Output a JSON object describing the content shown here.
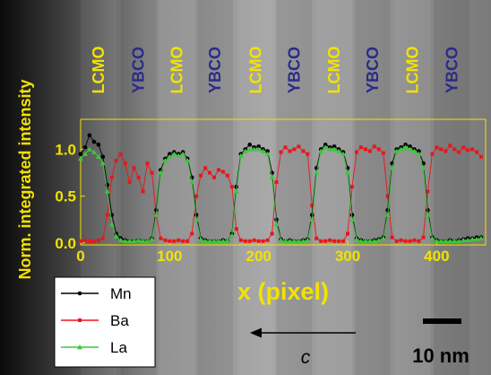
{
  "chart_data": {
    "type": "scatter",
    "xlabel": "x (pixel)",
    "ylabel": "Norm. integrated intensity",
    "xlim": [
      0,
      455
    ],
    "ylim": [
      -0.02,
      1.32
    ],
    "xticks": [
      0,
      100,
      200,
      300,
      400
    ],
    "xtick_labels": [
      "0",
      "100",
      "200",
      "300",
      "400"
    ],
    "yticks": [
      0.0,
      0.5,
      1.0
    ],
    "ytick_labels": [
      "0.0",
      "0.5",
      "1.0"
    ],
    "grid": false,
    "legend_position": "bottom-left",
    "colors": {
      "axis": "#f2e200",
      "lcmo": "#f2e200",
      "ybco": "#2a2a8c",
      "Mn": "#000000",
      "Ba": "#e8161b",
      "La": "#3cc83c"
    },
    "layers": [
      {
        "label": "LCMO",
        "kind": "lcmo",
        "x_center": 20
      },
      {
        "label": "YBCO",
        "kind": "ybco",
        "x_center": 65
      },
      {
        "label": "LCMO",
        "kind": "lcmo",
        "x_center": 108
      },
      {
        "label": "YBCO",
        "kind": "ybco",
        "x_center": 151
      },
      {
        "label": "LCMO",
        "kind": "lcmo",
        "x_center": 197
      },
      {
        "label": "YBCO",
        "kind": "ybco",
        "x_center": 240
      },
      {
        "label": "LCMO",
        "kind": "lcmo",
        "x_center": 285
      },
      {
        "label": "YBCO",
        "kind": "ybco",
        "x_center": 328
      },
      {
        "label": "LCMO",
        "kind": "lcmo",
        "x_center": 373
      },
      {
        "label": "YBCO",
        "kind": "ybco",
        "x_center": 417
      }
    ],
    "series": [
      {
        "name": "Mn",
        "marker": "circle",
        "x": [
          0,
          5,
          10,
          15,
          20,
          25,
          30,
          35,
          40,
          45,
          50,
          55,
          60,
          65,
          70,
          75,
          80,
          85,
          90,
          95,
          100,
          105,
          110,
          115,
          120,
          125,
          130,
          135,
          140,
          145,
          150,
          155,
          160,
          165,
          170,
          175,
          180,
          185,
          190,
          195,
          200,
          205,
          210,
          215,
          220,
          225,
          230,
          235,
          240,
          245,
          250,
          255,
          260,
          265,
          270,
          275,
          280,
          285,
          290,
          295,
          300,
          305,
          310,
          315,
          320,
          325,
          330,
          335,
          340,
          345,
          350,
          355,
          360,
          365,
          370,
          375,
          380,
          385,
          390,
          395,
          400,
          405,
          410,
          415,
          420,
          425,
          430,
          435,
          440,
          445,
          450
        ],
        "y": [
          0.95,
          1.02,
          1.15,
          1.08,
          1.05,
          0.92,
          0.62,
          0.3,
          0.1,
          0.05,
          0.03,
          0.02,
          0.02,
          0.03,
          0.02,
          0.02,
          0.05,
          0.35,
          0.78,
          0.9,
          0.95,
          0.97,
          0.95,
          0.97,
          0.9,
          0.7,
          0.3,
          0.05,
          0.03,
          0.02,
          0.02,
          0.02,
          0.03,
          0.02,
          0.1,
          0.6,
          0.95,
          1.0,
          1.05,
          1.02,
          1.03,
          1.0,
          0.98,
          0.75,
          0.25,
          0.04,
          0.02,
          0.03,
          0.02,
          0.02,
          0.03,
          0.04,
          0.3,
          0.8,
          1.0,
          1.05,
          1.02,
          1.03,
          1.0,
          0.97,
          0.8,
          0.3,
          0.05,
          0.03,
          0.02,
          0.02,
          0.03,
          0.04,
          0.06,
          0.35,
          0.85,
          1.0,
          1.02,
          1.05,
          1.03,
          1.0,
          0.98,
          0.85,
          0.35,
          0.06,
          0.03,
          0.02,
          0.02,
          0.03,
          0.02,
          0.03,
          0.04,
          0.05,
          0.05,
          0.06,
          0.06
        ]
      },
      {
        "name": "Ba",
        "marker": "square",
        "x": [
          0,
          5,
          10,
          15,
          20,
          25,
          30,
          35,
          40,
          45,
          50,
          55,
          60,
          65,
          70,
          75,
          80,
          85,
          90,
          95,
          100,
          105,
          110,
          115,
          120,
          125,
          130,
          135,
          140,
          145,
          150,
          155,
          160,
          165,
          170,
          175,
          180,
          185,
          190,
          195,
          200,
          205,
          210,
          215,
          220,
          225,
          230,
          235,
          240,
          245,
          250,
          255,
          260,
          265,
          270,
          275,
          280,
          285,
          290,
          295,
          300,
          305,
          310,
          315,
          320,
          325,
          330,
          335,
          340,
          345,
          350,
          355,
          360,
          365,
          370,
          375,
          380,
          385,
          390,
          395,
          400,
          405,
          410,
          415,
          420,
          425,
          430,
          435,
          440,
          445,
          450
        ],
        "y": [
          0.02,
          0.03,
          0.02,
          0.02,
          0.03,
          0.05,
          0.3,
          0.7,
          0.88,
          0.95,
          0.85,
          0.65,
          0.8,
          0.7,
          0.55,
          0.85,
          0.75,
          0.3,
          0.05,
          0.03,
          0.02,
          0.02,
          0.03,
          0.02,
          0.02,
          0.1,
          0.5,
          0.72,
          0.8,
          0.75,
          0.7,
          0.78,
          0.76,
          0.72,
          0.6,
          0.15,
          0.03,
          0.02,
          0.02,
          0.03,
          0.02,
          0.02,
          0.03,
          0.1,
          0.65,
          0.97,
          1.02,
          0.98,
          1.0,
          1.03,
          0.98,
          0.95,
          0.4,
          0.05,
          0.02,
          0.02,
          0.03,
          0.02,
          0.02,
          0.02,
          0.1,
          0.6,
          0.97,
          1.02,
          1.0,
          0.98,
          1.03,
          1.0,
          0.96,
          0.5,
          0.06,
          0.02,
          0.03,
          0.02,
          0.02,
          0.03,
          0.02,
          0.06,
          0.55,
          0.95,
          1.02,
          1.0,
          0.98,
          1.04,
          1.0,
          0.97,
          1.02,
          0.99,
          1.0,
          0.97,
          0.92
        ]
      },
      {
        "name": "La",
        "marker": "triangle",
        "x": [
          0,
          5,
          10,
          15,
          20,
          25,
          30,
          35,
          40,
          45,
          50,
          55,
          60,
          65,
          70,
          75,
          80,
          85,
          90,
          95,
          100,
          105,
          110,
          115,
          120,
          125,
          130,
          135,
          140,
          145,
          150,
          155,
          160,
          165,
          170,
          175,
          180,
          185,
          190,
          195,
          200,
          205,
          210,
          215,
          220,
          225,
          230,
          235,
          240,
          245,
          250,
          255,
          260,
          265,
          270,
          275,
          280,
          285,
          290,
          295,
          300,
          305,
          310,
          315,
          320,
          325,
          330,
          335,
          340,
          345,
          350,
          355,
          360,
          365,
          370,
          375,
          380,
          385,
          390,
          395,
          400,
          405,
          410,
          415,
          420,
          425,
          430,
          435,
          440,
          445,
          450
        ],
        "y": [
          0.9,
          0.95,
          1.0,
          0.97,
          0.92,
          0.85,
          0.55,
          0.2,
          0.07,
          0.03,
          0.02,
          0.02,
          0.02,
          0.03,
          0.02,
          0.02,
          0.04,
          0.3,
          0.75,
          0.88,
          0.92,
          0.95,
          0.93,
          0.95,
          0.88,
          0.65,
          0.25,
          0.04,
          0.02,
          0.02,
          0.02,
          0.02,
          0.02,
          0.02,
          0.08,
          0.55,
          0.93,
          0.98,
          1.0,
          1.0,
          1.0,
          0.98,
          0.95,
          0.7,
          0.2,
          0.03,
          0.02,
          0.02,
          0.02,
          0.02,
          0.02,
          0.03,
          0.25,
          0.75,
          0.98,
          1.02,
          1.0,
          1.0,
          0.98,
          0.95,
          0.75,
          0.25,
          0.04,
          0.02,
          0.02,
          0.02,
          0.02,
          0.03,
          0.05,
          0.3,
          0.8,
          0.98,
          1.0,
          1.02,
          1.0,
          0.98,
          0.95,
          0.8,
          0.3,
          0.05,
          0.02,
          0.02,
          0.02,
          0.02,
          0.02,
          0.02,
          0.03,
          0.03,
          0.04,
          0.04,
          0.05
        ]
      }
    ],
    "annotations": {
      "direction_label": "c",
      "scale_bar_label": "10 nm"
    }
  }
}
